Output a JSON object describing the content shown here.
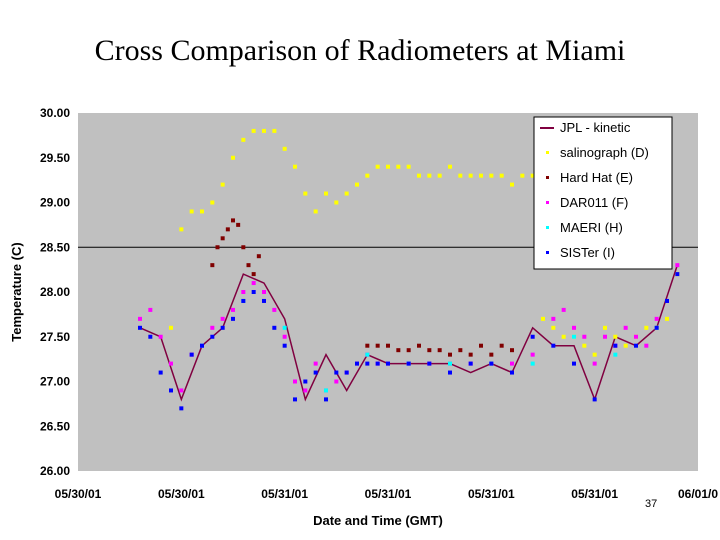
{
  "slide": {
    "title": "Cross Comparison of Radiometers at Miami",
    "page_number": "37"
  },
  "colors": {
    "plot_bg": "#c0c0c0",
    "jpl": "#800040",
    "salinograph": "#ffff00",
    "hardhat": "#800000",
    "dar011": "#ff00ff",
    "maeri": "#00ffff",
    "sister": "#0000ff"
  },
  "chart_data": {
    "type": "scatter",
    "title": "",
    "xlabel": "Date and Time (GMT)",
    "ylabel": "Temperature (C)",
    "ylim": [
      26.0,
      30.0
    ],
    "yticks": [
      "30.00",
      "29.50",
      "29.00",
      "28.50",
      "28.00",
      "27.50",
      "27.00",
      "26.50",
      "26.00"
    ],
    "xlim": [
      0,
      6
    ],
    "xticks": [
      "05/30/01",
      "05/30/01",
      "05/31/01",
      "05/31/01",
      "05/31/01",
      "05/31/01",
      "06/01/0"
    ],
    "reference_line_y": 28.5,
    "legend_position": "top-right",
    "series": [
      {
        "name": "JPL - kinetic",
        "style": "line",
        "color_key": "jpl",
        "x": [
          0.6,
          0.8,
          1.0,
          1.2,
          1.4,
          1.6,
          1.8,
          2.0,
          2.2,
          2.4,
          2.6,
          2.8,
          3.0,
          3.2,
          3.4,
          3.6,
          3.8,
          4.0,
          4.2,
          4.4,
          4.6,
          4.8,
          5.0,
          5.2,
          5.4,
          5.6,
          5.8
        ],
        "y": [
          27.6,
          27.5,
          26.8,
          27.4,
          27.6,
          28.2,
          28.1,
          27.7,
          26.8,
          27.3,
          26.9,
          27.3,
          27.2,
          27.2,
          27.2,
          27.2,
          27.1,
          27.2,
          27.1,
          27.6,
          27.4,
          27.4,
          26.8,
          27.5,
          27.4,
          27.6,
          28.3
        ]
      },
      {
        "name": "salinograph (D)",
        "style": "points",
        "color_key": "salinograph",
        "x": [
          0.9,
          1.0,
          1.1,
          1.2,
          1.3,
          1.4,
          1.5,
          1.6,
          1.7,
          1.8,
          1.9,
          2.0,
          2.1,
          2.2,
          2.3,
          2.4,
          2.5,
          2.6,
          2.7,
          2.8,
          2.9,
          3.0,
          3.1,
          3.2,
          3.3,
          3.4,
          3.5,
          3.6,
          3.7,
          3.8,
          3.9,
          4.0,
          4.1,
          4.2,
          4.3,
          4.4,
          4.5,
          4.6,
          4.7,
          4.8,
          4.9,
          5.0,
          5.1,
          5.2,
          5.3,
          5.4,
          5.5,
          5.6,
          5.7,
          5.8
        ],
        "y": [
          27.6,
          28.7,
          28.9,
          28.9,
          29.0,
          29.2,
          29.5,
          29.7,
          29.8,
          29.8,
          29.8,
          29.6,
          29.4,
          29.1,
          28.9,
          29.1,
          29.0,
          29.1,
          29.2,
          29.3,
          29.4,
          29.4,
          29.4,
          29.4,
          29.3,
          29.3,
          29.3,
          29.4,
          29.3,
          29.3,
          29.3,
          29.3,
          29.3,
          29.2,
          29.3,
          29.3,
          27.7,
          27.6,
          27.5,
          27.5,
          27.4,
          27.3,
          27.6,
          27.5,
          27.4,
          27.5,
          27.6,
          27.6,
          27.7,
          28.2
        ]
      },
      {
        "name": "Hard Hat (E)",
        "style": "points",
        "color_key": "hardhat",
        "x": [
          1.3,
          1.35,
          1.4,
          1.45,
          1.5,
          1.55,
          1.6,
          1.65,
          1.7,
          1.75,
          2.8,
          2.9,
          3.0,
          3.1,
          3.2,
          3.3,
          3.4,
          3.5,
          3.6,
          3.7,
          3.8,
          3.9,
          4.0,
          4.1,
          4.2
        ],
        "y": [
          28.3,
          28.5,
          28.6,
          28.7,
          28.8,
          28.75,
          28.5,
          28.3,
          28.2,
          28.4,
          27.4,
          27.4,
          27.4,
          27.35,
          27.35,
          27.4,
          27.35,
          27.35,
          27.3,
          27.35,
          27.3,
          27.4,
          27.3,
          27.4,
          27.35
        ]
      },
      {
        "name": "DAR011 (F)",
        "style": "points",
        "color_key": "dar011",
        "x": [
          0.6,
          0.7,
          0.8,
          0.9,
          1.0,
          1.1,
          1.2,
          1.3,
          1.4,
          1.5,
          1.6,
          1.7,
          1.8,
          1.9,
          2.0,
          2.1,
          2.2,
          2.3,
          2.4,
          2.5,
          2.6,
          2.7,
          2.8,
          2.9,
          3.0,
          3.2,
          3.4,
          3.6,
          3.8,
          4.0,
          4.2,
          4.4,
          4.6,
          4.7,
          4.8,
          4.9,
          5.0,
          5.1,
          5.2,
          5.3,
          5.4,
          5.5,
          5.6,
          5.7,
          5.8
        ],
        "y": [
          27.7,
          27.8,
          27.5,
          27.2,
          26.9,
          27.3,
          27.4,
          27.6,
          27.7,
          27.8,
          28.0,
          28.1,
          28.0,
          27.8,
          27.5,
          27.0,
          26.9,
          27.2,
          26.9,
          27.0,
          27.1,
          27.2,
          27.3,
          27.2,
          27.2,
          27.2,
          27.2,
          27.2,
          27.2,
          27.2,
          27.2,
          27.3,
          27.7,
          27.8,
          27.6,
          27.5,
          27.2,
          27.5,
          27.4,
          27.6,
          27.5,
          27.4,
          27.7,
          27.9,
          28.3
        ]
      },
      {
        "name": "MAERI (H)",
        "style": "points",
        "color_key": "maeri",
        "x": [
          1.2,
          1.6,
          2.0,
          2.4,
          2.8,
          3.2,
          3.6,
          4.0,
          4.4,
          4.8,
          5.2,
          5.6
        ],
        "y": [
          27.4,
          27.9,
          27.6,
          26.9,
          27.3,
          27.2,
          27.2,
          27.2,
          27.2,
          27.5,
          27.3,
          27.6
        ]
      },
      {
        "name": "SISTer (I)",
        "style": "points",
        "color_key": "sister",
        "x": [
          0.6,
          0.7,
          0.8,
          0.9,
          1.0,
          1.1,
          1.2,
          1.3,
          1.4,
          1.5,
          1.6,
          1.7,
          1.8,
          1.9,
          2.0,
          2.1,
          2.2,
          2.3,
          2.4,
          2.5,
          2.6,
          2.7,
          2.8,
          2.9,
          3.0,
          3.2,
          3.4,
          3.6,
          3.8,
          4.0,
          4.2,
          4.4,
          4.6,
          4.8,
          5.0,
          5.2,
          5.4,
          5.6,
          5.7,
          5.8
        ],
        "y": [
          27.6,
          27.5,
          27.1,
          26.9,
          26.7,
          27.3,
          27.4,
          27.5,
          27.6,
          27.7,
          27.9,
          28.0,
          27.9,
          27.6,
          27.4,
          26.8,
          27.0,
          27.1,
          26.8,
          27.1,
          27.1,
          27.2,
          27.2,
          27.2,
          27.2,
          27.2,
          27.2,
          27.1,
          27.2,
          27.2,
          27.1,
          27.5,
          27.4,
          27.2,
          26.8,
          27.4,
          27.4,
          27.6,
          27.9,
          28.2
        ]
      }
    ]
  }
}
